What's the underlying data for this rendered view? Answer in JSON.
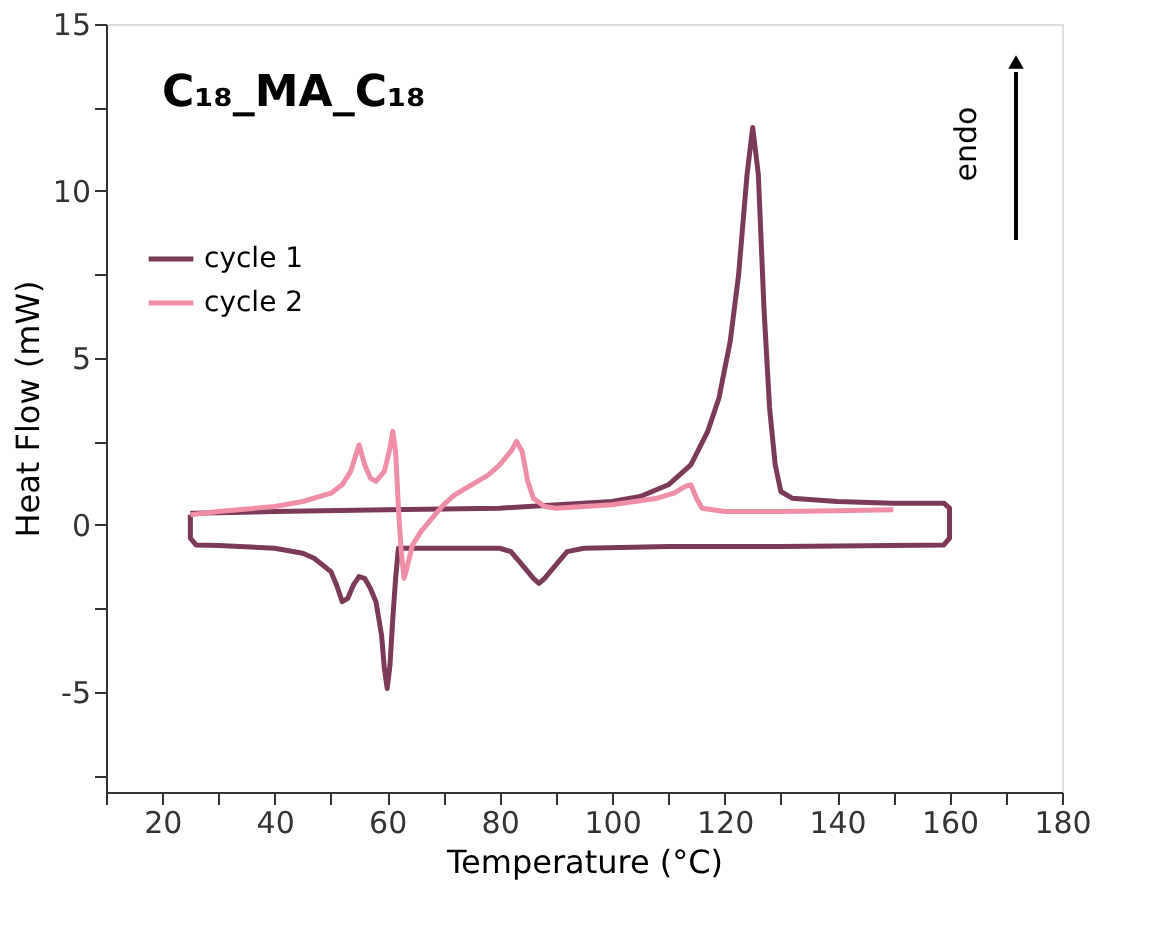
{
  "chart_data": {
    "type": "line",
    "title": "C₁₈_MA_C₁₈",
    "xlabel": "Temperature (°C)",
    "ylabel": "Heat Flow (mW)",
    "annotations": [
      "endo"
    ],
    "xlim": [
      10,
      180
    ],
    "ylim": [
      -8,
      15
    ],
    "xticks": [
      {
        "value": 10,
        "label": null
      },
      20,
      {
        "value": 30,
        "label": null
      },
      40,
      {
        "value": 50,
        "label": null
      },
      60,
      {
        "value": 70,
        "label": null
      },
      80,
      {
        "value": 90,
        "label": null
      },
      100,
      {
        "value": 110,
        "label": null
      },
      120,
      {
        "value": 130,
        "label": null
      },
      140,
      {
        "value": 150,
        "label": null
      },
      160,
      {
        "value": 170,
        "label": null
      },
      180
    ],
    "yticks": [
      {
        "value": -7.5,
        "label": null
      },
      -5,
      {
        "value": -2.5,
        "label": null
      },
      0,
      {
        "value": 2.5,
        "label": null
      },
      5,
      {
        "value": 7.5,
        "label": null
      },
      10,
      {
        "value": 12.5,
        "label": null
      },
      15
    ],
    "grid": false,
    "legend": "top left",
    "marker": "none",
    "line_style": "solid",
    "series": [
      {
        "name": "cycle 1",
        "color": "#7d3a58",
        "x": [
          25,
          40,
          60,
          80,
          100,
          105,
          110,
          114,
          117,
          119,
          121,
          122.5,
          124,
          125,
          126,
          127,
          128,
          129,
          130,
          132,
          140,
          150,
          159,
          160,
          160,
          159,
          150,
          130,
          110,
          95,
          92,
          90,
          88,
          87,
          86,
          84,
          82,
          80,
          70,
          63,
          62,
          61.5,
          61,
          60.5,
          60,
          59.5,
          59,
          58,
          57,
          56,
          55,
          54,
          53,
          52,
          51,
          50,
          47,
          45,
          40,
          30,
          26,
          25,
          25
        ],
        "values": [
          0.35,
          0.4,
          0.45,
          0.5,
          0.7,
          0.85,
          1.2,
          1.8,
          2.8,
          3.8,
          5.5,
          7.5,
          10.5,
          11.9,
          10.5,
          6.5,
          3.5,
          1.8,
          1.0,
          0.8,
          0.7,
          0.65,
          0.65,
          0.5,
          -0.4,
          -0.6,
          -0.62,
          -0.65,
          -0.65,
          -0.7,
          -0.8,
          -1.2,
          -1.6,
          -1.75,
          -1.6,
          -1.2,
          -0.8,
          -0.7,
          -0.7,
          -0.7,
          -0.7,
          -1.6,
          -2.8,
          -4.2,
          -4.9,
          -4.3,
          -3.3,
          -2.3,
          -1.9,
          -1.6,
          -1.55,
          -1.8,
          -2.2,
          -2.3,
          -1.8,
          -1.4,
          -1.0,
          -0.85,
          -0.7,
          -0.62,
          -0.6,
          -0.4,
          0.3
        ]
      },
      {
        "name": "cycle 2",
        "color": "#f08ea8",
        "x": [
          25,
          30,
          40,
          45,
          50,
          52,
          53.5,
          55,
          56,
          57,
          58,
          59.5,
          60.5,
          61,
          61.5,
          62,
          62.5,
          63,
          63.5,
          64.5,
          66,
          68,
          70,
          72,
          75,
          78,
          80,
          82,
          83,
          84,
          85,
          86,
          88,
          90,
          100,
          108,
          111,
          113,
          114,
          115,
          116,
          120,
          130,
          140,
          150
        ],
        "values": [
          0.3,
          0.4,
          0.55,
          0.7,
          0.95,
          1.2,
          1.6,
          2.4,
          1.8,
          1.4,
          1.3,
          1.6,
          2.3,
          2.8,
          2.2,
          0.5,
          -0.8,
          -1.6,
          -1.3,
          -0.6,
          -0.2,
          0.2,
          0.6,
          0.9,
          1.2,
          1.5,
          1.8,
          2.2,
          2.5,
          2.2,
          1.3,
          0.8,
          0.55,
          0.5,
          0.6,
          0.8,
          0.95,
          1.15,
          1.2,
          0.8,
          0.5,
          0.4,
          0.4,
          0.42,
          0.45
        ]
      }
    ]
  }
}
